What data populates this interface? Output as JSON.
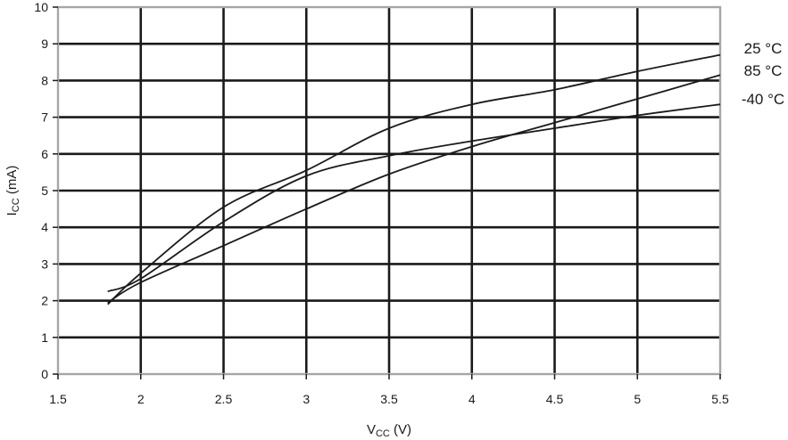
{
  "chart_data": {
    "type": "line",
    "xlabel": {
      "main": "V",
      "sub": "CC",
      "suffix": " (V)"
    },
    "ylabel": {
      "main": "I",
      "sub": "CC",
      "suffix": " (mA)"
    },
    "xlim": [
      1.5,
      5.5
    ],
    "ylim": [
      0,
      10
    ],
    "x_ticks": [
      1.5,
      2,
      2.5,
      3,
      3.5,
      4,
      4.5,
      5,
      5.5
    ],
    "x_tick_labels": [
      "1.5",
      "2",
      "2.5",
      "3",
      "3.5",
      "4",
      "4.5",
      "5",
      "5.5"
    ],
    "y_ticks": [
      0,
      1,
      2,
      3,
      4,
      5,
      6,
      7,
      8,
      9,
      10
    ],
    "y_tick_labels": [
      "0",
      "1",
      "2",
      "3",
      "4",
      "5",
      "6",
      "7",
      "8",
      "9",
      "10"
    ],
    "grid": true,
    "legend_placement": "right (labels at line ends)",
    "series": [
      {
        "name": "25 °C",
        "x": [
          1.8,
          2.0,
          2.5,
          3.0,
          3.5,
          4.0,
          4.5,
          5.0,
          5.5
        ],
        "y": [
          1.9,
          2.75,
          4.55,
          5.55,
          6.7,
          7.35,
          7.75,
          8.25,
          8.7
        ]
      },
      {
        "name": "85 °C",
        "x": [
          1.8,
          2.0,
          2.5,
          3.0,
          3.5,
          4.0,
          4.5,
          5.0,
          5.5
        ],
        "y": [
          1.95,
          2.5,
          3.5,
          4.5,
          5.45,
          6.2,
          6.85,
          7.5,
          8.15
        ]
      },
      {
        "name": "-40 °C",
        "x": [
          1.8,
          2.0,
          2.5,
          3.0,
          3.5,
          4.0,
          4.5,
          5.0,
          5.5
        ],
        "y": [
          2.25,
          2.6,
          4.15,
          5.4,
          5.95,
          6.35,
          6.7,
          7.05,
          7.35
        ]
      }
    ],
    "colors": {
      "line": "#1a1a1a",
      "grid": "#1a1a1a",
      "frame": "#a6a6a6"
    }
  }
}
